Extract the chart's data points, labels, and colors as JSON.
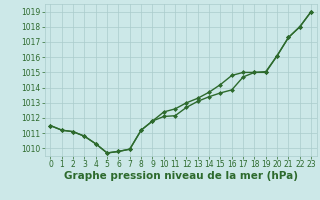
{
  "x": [
    0,
    1,
    2,
    3,
    4,
    5,
    6,
    7,
    8,
    9,
    10,
    11,
    12,
    13,
    14,
    15,
    16,
    17,
    18,
    19,
    20,
    21,
    22,
    23
  ],
  "y_lower": [
    1011.5,
    1011.2,
    1011.1,
    1010.8,
    1010.3,
    1009.7,
    1009.8,
    1009.95,
    1011.2,
    1011.8,
    1012.1,
    1012.15,
    1012.7,
    1013.1,
    1013.4,
    1013.65,
    1013.85,
    1014.7,
    1015.0,
    1015.0,
    1016.1,
    1017.3,
    1018.0,
    1019.0
  ],
  "y_upper": [
    1011.5,
    1011.2,
    1011.1,
    1010.8,
    1010.3,
    1009.7,
    1009.8,
    1009.95,
    1011.2,
    1011.8,
    1012.4,
    1012.6,
    1013.0,
    1013.3,
    1013.7,
    1014.2,
    1014.8,
    1015.0,
    1015.0,
    1015.05,
    1016.1,
    1017.3,
    1018.0,
    1019.0
  ],
  "xlim": [
    -0.5,
    23.5
  ],
  "ylim": [
    1009.5,
    1019.5
  ],
  "yticks": [
    1010,
    1011,
    1012,
    1013,
    1014,
    1015,
    1016,
    1017,
    1018,
    1019
  ],
  "xticks": [
    0,
    1,
    2,
    3,
    4,
    5,
    6,
    7,
    8,
    9,
    10,
    11,
    12,
    13,
    14,
    15,
    16,
    17,
    18,
    19,
    20,
    21,
    22,
    23
  ],
  "xlabel": "Graphe pression niveau de la mer (hPa)",
  "line_color": "#2d6a2d",
  "bg_color": "#cce8e8",
  "grid_color": "#aacccc",
  "marker": "D",
  "marker_size": 2.0,
  "line_width": 1.0,
  "tick_fontsize": 5.5,
  "xlabel_fontsize": 7.5
}
